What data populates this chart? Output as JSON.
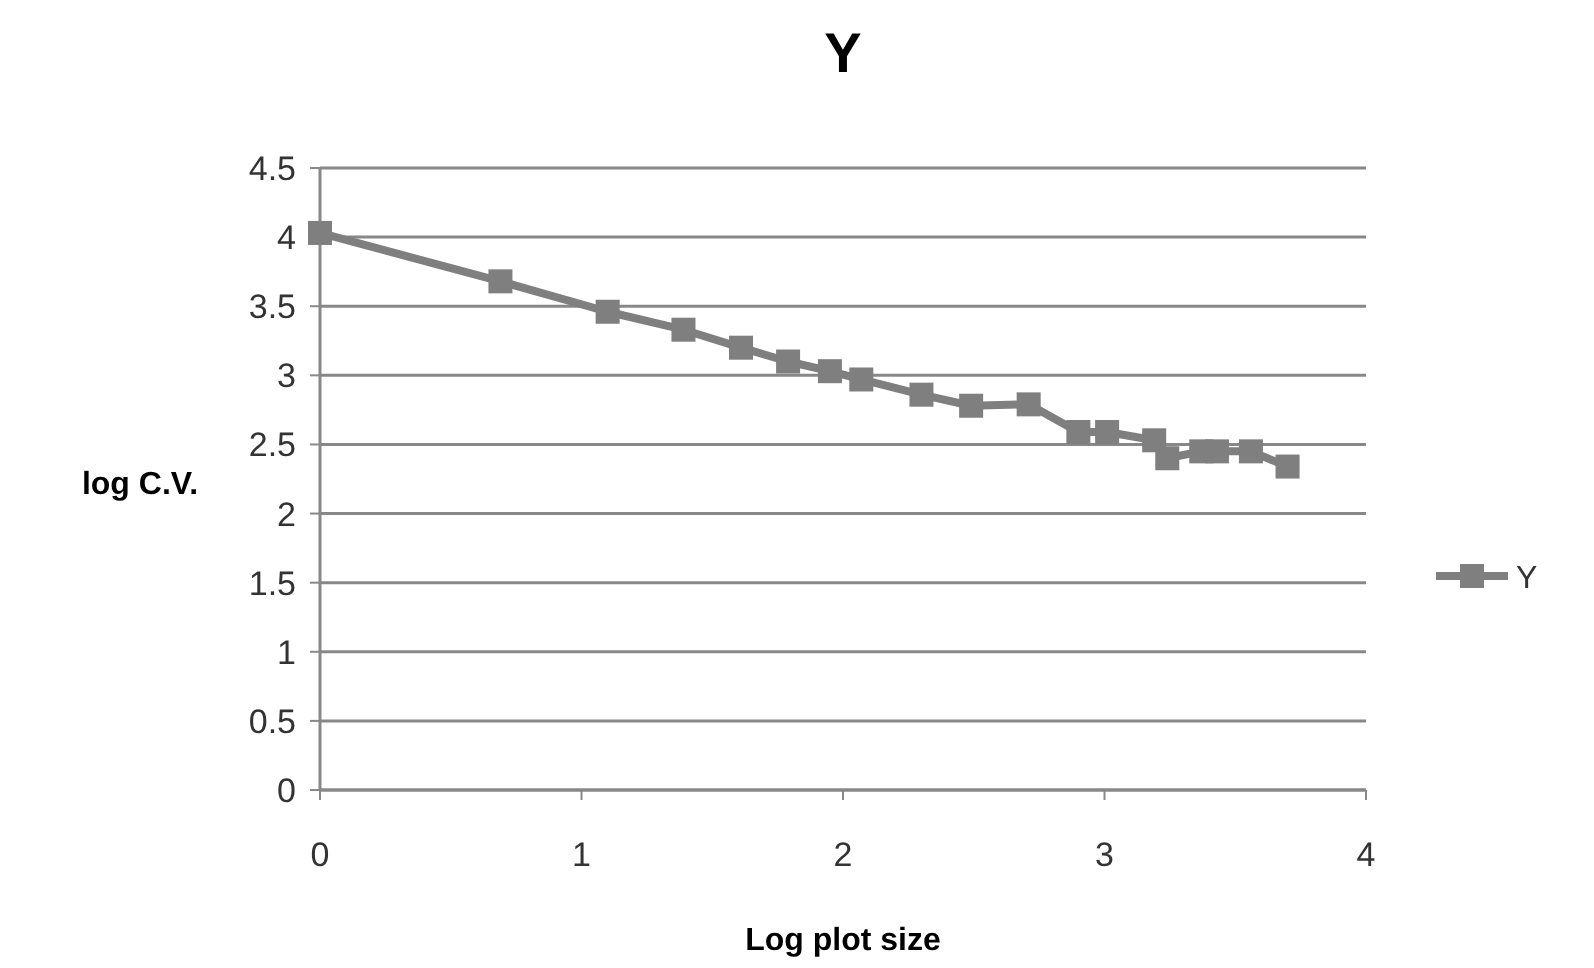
{
  "chart_data": {
    "type": "line",
    "title": "Y",
    "xlabel": "Log plot size",
    "ylabel": "log C.V.",
    "xlim": [
      0,
      4
    ],
    "xticks": [
      0,
      1,
      2,
      3,
      4
    ],
    "ylim": [
      0,
      4.5
    ],
    "yticks": [
      0,
      0.5,
      1,
      1.5,
      2,
      2.5,
      3,
      3.5,
      4,
      4.5
    ],
    "grid": "y",
    "legend": "right",
    "marker": "square",
    "line_style": "solid",
    "series": [
      {
        "name": "Y",
        "color": "#7f7f7f",
        "x": [
          0,
          0.69,
          1.1,
          1.39,
          1.61,
          1.79,
          1.95,
          2.07,
          2.3,
          2.49,
          2.71,
          2.9,
          3.01,
          3.19,
          3.24,
          3.37,
          3.43,
          3.56,
          3.7
        ],
        "values": [
          4.03,
          3.68,
          3.46,
          3.33,
          3.2,
          3.1,
          3.03,
          2.97,
          2.86,
          2.78,
          2.79,
          2.59,
          2.59,
          2.53,
          2.4,
          2.45,
          2.45,
          2.45,
          2.34
        ]
      }
    ]
  }
}
